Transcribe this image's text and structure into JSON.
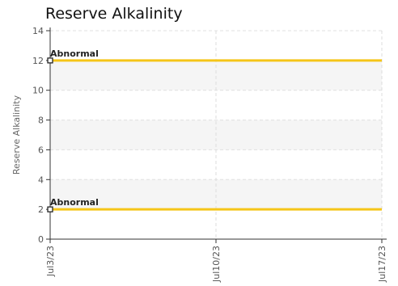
{
  "chart_data": {
    "type": "line",
    "title": "Reserve Alkalinity",
    "ylabel": "Reserve Alkalinity",
    "xlabel": "",
    "ylim": [
      0,
      14
    ],
    "y_ticks": [
      0,
      2,
      4,
      6,
      8,
      10,
      12,
      14
    ],
    "x_range": [
      "2023-07-03",
      "2023-07-17"
    ],
    "x_ticks": [
      {
        "date": "2023-07-03",
        "label": "Jul3/23"
      },
      {
        "date": "2023-07-10",
        "label": "Jul10/23"
      },
      {
        "date": "2023-07-17",
        "label": "Jul17/23"
      }
    ],
    "grid": true,
    "series": [
      {
        "points": [
          {
            "x": "2023-07-03",
            "y": 12
          },
          {
            "x": "2023-07-17",
            "y": 12
          }
        ],
        "point_label": "Abnormal",
        "color": "#f5c518"
      },
      {
        "points": [
          {
            "x": "2023-07-03",
            "y": 2
          },
          {
            "x": "2023-07-17",
            "y": 2
          }
        ],
        "point_label": "Abnormal",
        "color": "#f5c518"
      }
    ]
  }
}
